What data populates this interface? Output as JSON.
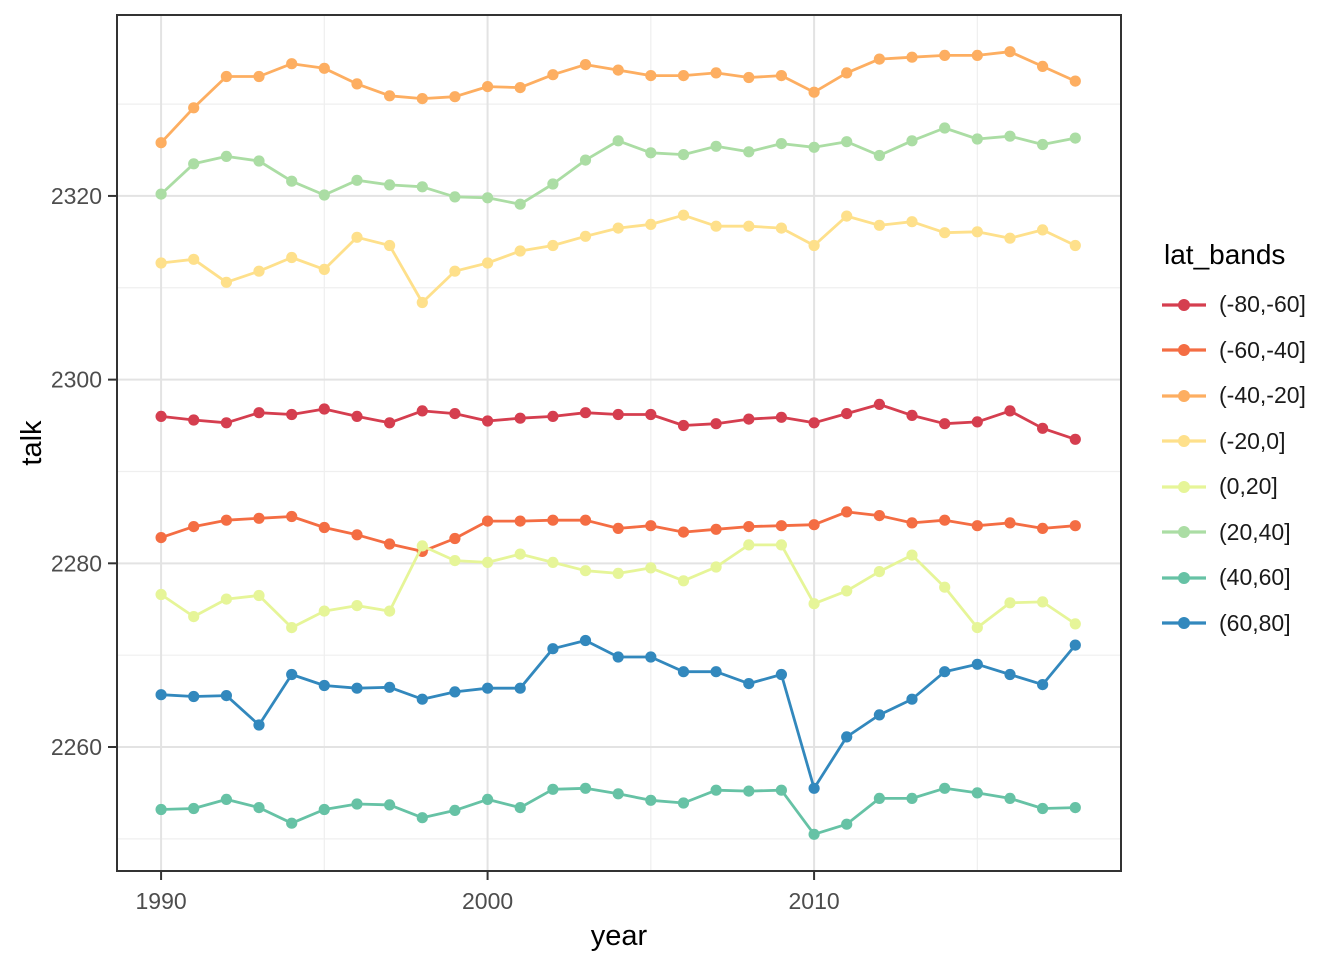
{
  "chart_data": {
    "type": "line",
    "title": "",
    "xlabel": "year",
    "ylabel": "talk",
    "legend_title": "lat_bands",
    "legend_position": "right",
    "grid": true,
    "points": true,
    "xlim": [
      1988.65,
      2019.4
    ],
    "ylim": [
      2246.5,
      2339.7
    ],
    "x_ticks": [
      1990,
      2000,
      2010
    ],
    "x_minor_ticks": [
      1995,
      2005,
      2015
    ],
    "y_ticks": [
      2260,
      2280,
      2300,
      2320
    ],
    "y_minor_ticks": [
      2250,
      2270,
      2290,
      2310,
      2330
    ],
    "x": [
      1990,
      1991,
      1992,
      1993,
      1994,
      1995,
      1996,
      1997,
      1998,
      1999,
      2000,
      2001,
      2002,
      2003,
      2004,
      2005,
      2006,
      2007,
      2008,
      2009,
      2010,
      2011,
      2012,
      2013,
      2014,
      2015,
      2016,
      2017,
      2018
    ],
    "series": [
      {
        "name": "(-80,-60]",
        "color": "#d53e4f",
        "values": [
          2296.0,
          2295.6,
          2295.3,
          2296.4,
          2296.2,
          2296.8,
          2296.0,
          2295.3,
          2296.6,
          2296.3,
          2295.5,
          2295.8,
          2296.0,
          2296.4,
          2296.2,
          2296.2,
          2295.0,
          2295.2,
          2295.7,
          2295.9,
          2295.3,
          2296.3,
          2297.3,
          2296.1,
          2295.2,
          2295.4,
          2296.6,
          2294.7,
          2293.5
        ]
      },
      {
        "name": "(-60,-40]",
        "color": "#f46d43",
        "values": [
          2282.8,
          2284.0,
          2284.7,
          2284.9,
          2285.1,
          2283.9,
          2283.1,
          2282.1,
          2281.3,
          2282.7,
          2284.6,
          2284.6,
          2284.7,
          2284.7,
          2283.8,
          2284.1,
          2283.4,
          2283.7,
          2284.0,
          2284.1,
          2284.2,
          2285.6,
          2285.2,
          2284.4,
          2284.7,
          2284.1,
          2284.4,
          2283.8,
          2284.1
        ]
      },
      {
        "name": "(-40,-20]",
        "color": "#fdae61",
        "values": [
          2325.8,
          2329.6,
          2333.0,
          2333.0,
          2334.4,
          2333.9,
          2332.2,
          2330.9,
          2330.6,
          2330.8,
          2331.9,
          2331.8,
          2333.2,
          2334.3,
          2333.7,
          2333.1,
          2333.1,
          2333.4,
          2332.9,
          2333.1,
          2331.3,
          2333.4,
          2334.9,
          2335.1,
          2335.3,
          2335.3,
          2335.7,
          2334.1,
          2332.5
        ]
      },
      {
        "name": "(-20,0]",
        "color": "#fee08b",
        "values": [
          2312.7,
          2313.1,
          2310.6,
          2311.8,
          2313.3,
          2312.0,
          2315.5,
          2314.6,
          2308.4,
          2311.8,
          2312.7,
          2314.0,
          2314.6,
          2315.6,
          2316.5,
          2316.9,
          2317.9,
          2316.7,
          2316.7,
          2316.5,
          2314.6,
          2317.8,
          2316.8,
          2317.2,
          2316.0,
          2316.1,
          2315.4,
          2316.3,
          2314.6
        ]
      },
      {
        "name": "(0,20]",
        "color": "#e6f598",
        "values": [
          2276.6,
          2274.2,
          2276.1,
          2276.5,
          2273.0,
          2274.8,
          2275.4,
          2274.8,
          2281.9,
          2280.3,
          2280.1,
          2281.0,
          2280.1,
          2279.2,
          2278.9,
          2279.5,
          2278.1,
          2279.6,
          2282.0,
          2282.0,
          2275.6,
          2277.0,
          2279.1,
          2280.9,
          2277.4,
          2273.0,
          2275.7,
          2275.8,
          2273.4
        ]
      },
      {
        "name": "(20,40]",
        "color": "#abdda4",
        "values": [
          2320.2,
          2323.5,
          2324.3,
          2323.8,
          2321.6,
          2320.1,
          2321.7,
          2321.2,
          2321.0,
          2319.9,
          2319.8,
          2319.1,
          2321.3,
          2323.9,
          2326.0,
          2324.7,
          2324.5,
          2325.4,
          2324.8,
          2325.7,
          2325.3,
          2325.9,
          2324.4,
          2326.0,
          2327.4,
          2326.2,
          2326.5,
          2325.6,
          2326.3
        ]
      },
      {
        "name": "(40,60]",
        "color": "#66c2a5",
        "values": [
          2253.2,
          2253.3,
          2254.3,
          2253.4,
          2251.7,
          2253.2,
          2253.8,
          2253.7,
          2252.3,
          2253.1,
          2254.3,
          2253.4,
          2255.4,
          2255.5,
          2254.9,
          2254.2,
          2253.9,
          2255.3,
          2255.2,
          2255.3,
          2250.5,
          2251.6,
          2254.4,
          2254.4,
          2255.5,
          2255.0,
          2254.4,
          2253.3,
          2253.4
        ]
      },
      {
        "name": "(60,80]",
        "color": "#3288bd",
        "values": [
          2265.7,
          2265.5,
          2265.6,
          2262.4,
          2267.9,
          2266.7,
          2266.4,
          2266.5,
          2265.2,
          2266.0,
          2266.4,
          2266.4,
          2270.7,
          2271.6,
          2269.8,
          2269.8,
          2268.2,
          2268.2,
          2266.9,
          2267.9,
          2255.5,
          2261.1,
          2263.5,
          2265.2,
          2268.2,
          2269.0,
          2267.9,
          2266.8,
          2271.1
        ]
      }
    ]
  },
  "colors": {
    "background": "#ffffff",
    "panel_background": "#ffffff",
    "panel_border": "#333333",
    "grid_major": "#e3e3e3",
    "grid_minor": "#efefef",
    "axis_tick": "#333333",
    "tick_label": "#4d4d4d",
    "axis_title": "#000000",
    "legend_title": "#000000",
    "legend_label": "#1a1a1a"
  }
}
